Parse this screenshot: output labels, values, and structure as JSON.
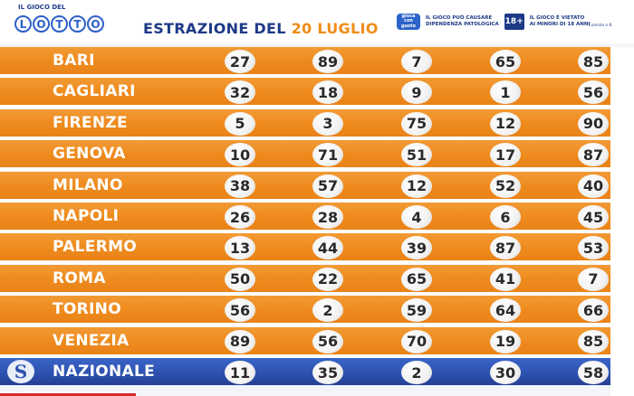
{
  "header": {
    "logo_small": "IL GIOCO DEL",
    "logo_letters": [
      "L",
      "O",
      "T",
      "T",
      "O"
    ],
    "title_prefix": "ESTRAZIONE DEL ",
    "title_date": "20 LUGLIO",
    "warn_logo": "gioca con gusto",
    "warn1_line1": "IL GIOCO PUÒ CAUSARE",
    "warn1_line2": "DIPENDENZA PATOLOGICA",
    "age_badge": "18+",
    "warn2_line1": "IL GIOCO È VIETATO",
    "warn2_line2": "AI MINORI DI 18 ANNI",
    "license": "Licenza n.6"
  },
  "rows": [
    {
      "city": "BARI",
      "numbers": [
        "27",
        "89",
        "7",
        "65",
        "85"
      ]
    },
    {
      "city": "CAGLIARI",
      "numbers": [
        "32",
        "18",
        "9",
        "1",
        "56"
      ]
    },
    {
      "city": "FIRENZE",
      "numbers": [
        "5",
        "3",
        "75",
        "12",
        "90"
      ]
    },
    {
      "city": "GENOVA",
      "numbers": [
        "10",
        "71",
        "51",
        "17",
        "87"
      ]
    },
    {
      "city": "MILANO",
      "numbers": [
        "38",
        "57",
        "12",
        "52",
        "40"
      ]
    },
    {
      "city": "NAPOLI",
      "numbers": [
        "26",
        "28",
        "4",
        "6",
        "45"
      ]
    },
    {
      "city": "PALERMO",
      "numbers": [
        "13",
        "44",
        "39",
        "87",
        "53"
      ]
    },
    {
      "city": "ROMA",
      "numbers": [
        "50",
        "22",
        "65",
        "41",
        "7"
      ]
    },
    {
      "city": "TORINO",
      "numbers": [
        "56",
        "2",
        "59",
        "64",
        "66"
      ]
    },
    {
      "city": "VENEZIA",
      "numbers": [
        "89",
        "56",
        "70",
        "19",
        "85"
      ]
    },
    {
      "city": "NAZIONALE",
      "numbers": [
        "11",
        "35",
        "2",
        "30",
        "58"
      ],
      "national": true
    }
  ],
  "national_mark": "S",
  "colors": {
    "orange_row": "#ee8a1d",
    "blue_row": "#2c50ad",
    "title_blue": "#1c3a86",
    "title_orange": "#f08c17"
  }
}
